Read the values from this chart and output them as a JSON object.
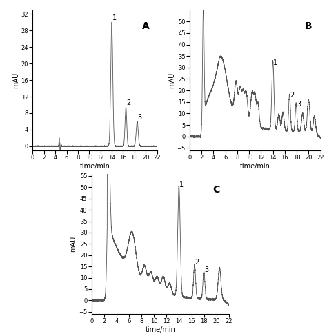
{
  "panel_A": {
    "label": "A",
    "ylabel": "mAU",
    "xlabel": "time/min",
    "xlim": [
      0,
      22
    ],
    "ylim": [
      -1,
      33
    ],
    "yticks": [
      0,
      4,
      8,
      12,
      16,
      20,
      24,
      28,
      32
    ],
    "xticks": [
      0,
      2,
      4,
      6,
      8,
      10,
      12,
      14,
      16,
      18,
      20,
      22
    ]
  },
  "panel_B": {
    "label": "B",
    "ylabel": "mAU",
    "xlabel": "time/min",
    "xlim": [
      0,
      22
    ],
    "ylim": [
      -6,
      55
    ],
    "yticks": [
      -5,
      0,
      5,
      10,
      15,
      20,
      25,
      30,
      35,
      40,
      45,
      50
    ],
    "xticks": [
      0,
      2,
      4,
      6,
      8,
      10,
      12,
      14,
      16,
      18,
      20,
      22
    ]
  },
  "panel_C": {
    "label": "C",
    "ylabel": "mAU",
    "xlabel": "time/min",
    "xlim": [
      0,
      22
    ],
    "ylim": [
      -6,
      56
    ],
    "yticks": [
      -5,
      0,
      5,
      10,
      15,
      20,
      25,
      30,
      35,
      40,
      45,
      50,
      55
    ],
    "xticks": [
      0,
      2,
      4,
      6,
      8,
      10,
      12,
      14,
      16,
      18,
      20,
      22
    ]
  },
  "line_color": "#555555",
  "background_color": "#ffffff",
  "label_fontsize": 7,
  "axis_fontsize": 7,
  "panel_label_fontsize": 10
}
